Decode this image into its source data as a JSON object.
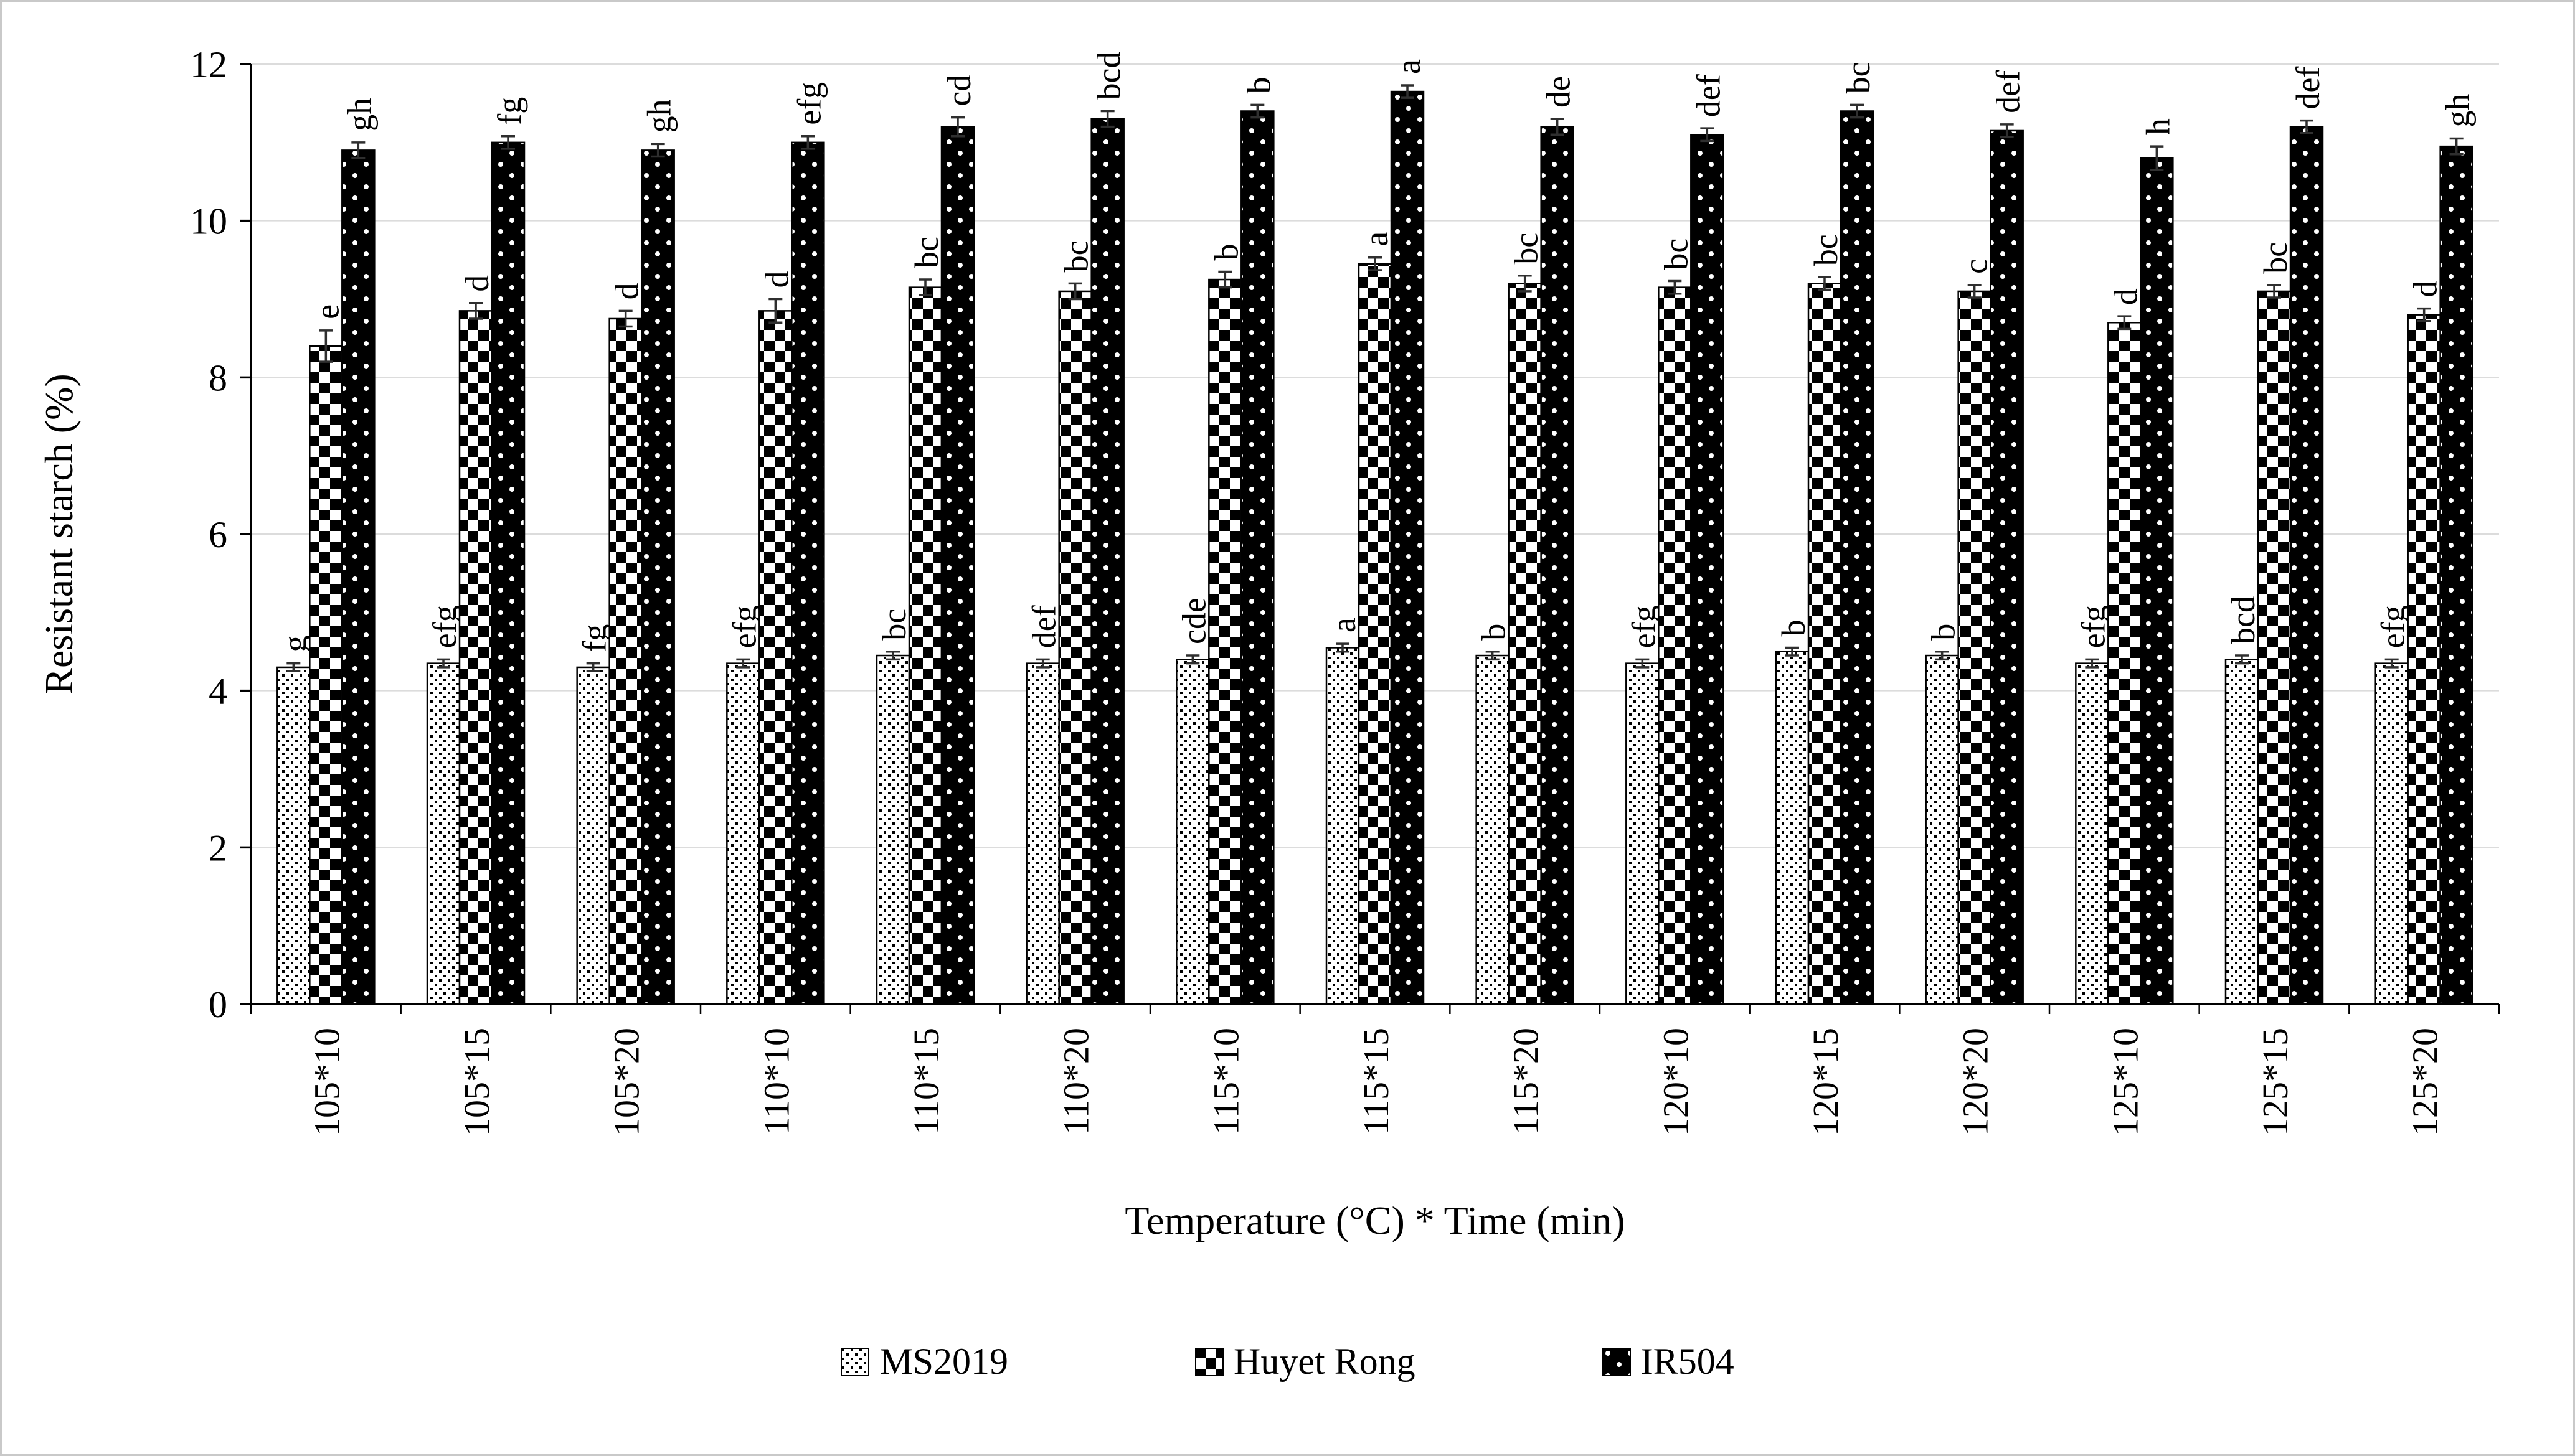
{
  "figure": {
    "background": "#ffffff",
    "border_color": "#c9c9c9"
  },
  "chart_data": {
    "type": "bar",
    "title": "",
    "xlabel": "Temperature (°C) * Time (min)",
    "ylabel": "Resistant starch (%)",
    "ylim": [
      0,
      12
    ],
    "yticks": [
      0,
      2,
      4,
      6,
      8,
      10,
      12
    ],
    "grid": "horizontal-light",
    "legend_position": "bottom",
    "colors": {
      "bar_outline": "#000000",
      "gridline": "#dcdcdc",
      "axis": "#000000",
      "error_bar": "#2f2f2f"
    },
    "categories": [
      "105*10",
      "105*15",
      "105*20",
      "110*10",
      "110*15",
      "110*20",
      "115*10",
      "115*15",
      "115*20",
      "120*10",
      "120*15",
      "120*20",
      "125*10",
      "125*15",
      "125*20"
    ],
    "series": [
      {
        "name": "MS2019",
        "pattern": "fine-black-dots-on-white",
        "values": [
          4.3,
          4.35,
          4.3,
          4.35,
          4.45,
          4.35,
          4.4,
          4.55,
          4.45,
          4.35,
          4.5,
          4.45,
          4.35,
          4.4,
          4.35
        ],
        "errors": [
          0.05,
          0.05,
          0.05,
          0.05,
          0.05,
          0.05,
          0.05,
          0.05,
          0.05,
          0.05,
          0.05,
          0.05,
          0.05,
          0.05,
          0.05
        ],
        "letters": [
          "g",
          "efg",
          "fg",
          "efg",
          "bc",
          "def",
          "cde",
          "a",
          "b",
          "efg",
          "b",
          "b",
          "efg",
          "bcd",
          "efg"
        ]
      },
      {
        "name": "Huyet Rong",
        "pattern": "black-white-checkerboard",
        "values": [
          8.4,
          8.85,
          8.75,
          8.85,
          9.15,
          9.1,
          9.25,
          9.45,
          9.2,
          9.15,
          9.2,
          9.1,
          8.7,
          9.1,
          8.8
        ],
        "errors": [
          0.2,
          0.1,
          0.1,
          0.15,
          0.1,
          0.1,
          0.1,
          0.08,
          0.1,
          0.08,
          0.08,
          0.08,
          0.08,
          0.08,
          0.08
        ],
        "letters": [
          "e",
          "d",
          "d",
          "d",
          "bc",
          "bc",
          "b",
          "a",
          "bc",
          "bc",
          "bc",
          "c",
          "d",
          "bc",
          "d"
        ]
      },
      {
        "name": "IR504",
        "pattern": "white-dots-on-black",
        "values": [
          10.9,
          11.0,
          10.9,
          11.0,
          11.2,
          11.3,
          11.4,
          11.65,
          11.2,
          11.1,
          11.4,
          11.15,
          10.8,
          11.2,
          10.95
        ],
        "errors": [
          0.1,
          0.08,
          0.08,
          0.08,
          0.12,
          0.1,
          0.08,
          0.08,
          0.1,
          0.08,
          0.08,
          0.08,
          0.15,
          0.08,
          0.1
        ],
        "letters": [
          "gh",
          "fg",
          "gh",
          "efg",
          "cd",
          "bcd",
          "b",
          "a",
          "de",
          "def",
          "bc",
          "def",
          "h",
          "def",
          "gh"
        ]
      }
    ]
  }
}
